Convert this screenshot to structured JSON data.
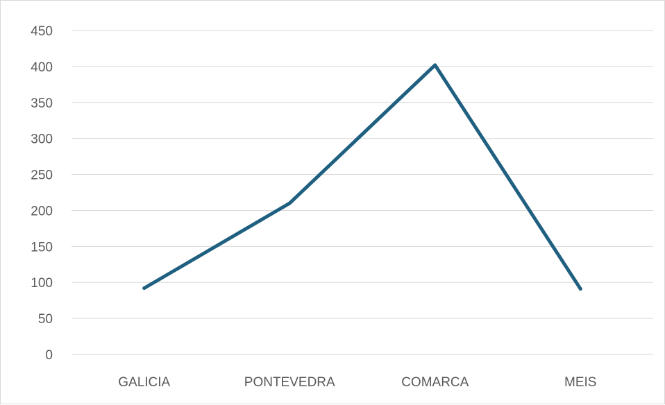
{
  "chart_data": {
    "type": "line",
    "title": "",
    "xlabel": "",
    "ylabel": "",
    "categories": [
      "GALICIA",
      "PONTEVEDRA",
      "COMARCA",
      "MEIS"
    ],
    "series": [
      {
        "values": [
          92,
          210,
          402,
          91
        ],
        "color": "#1f5f80"
      }
    ],
    "ylim": [
      0,
      450
    ],
    "yticks": [
      "0",
      "50",
      "100",
      "150",
      "200",
      "250",
      "300",
      "350",
      "400",
      "450"
    ],
    "grid": true,
    "legend": "none"
  }
}
